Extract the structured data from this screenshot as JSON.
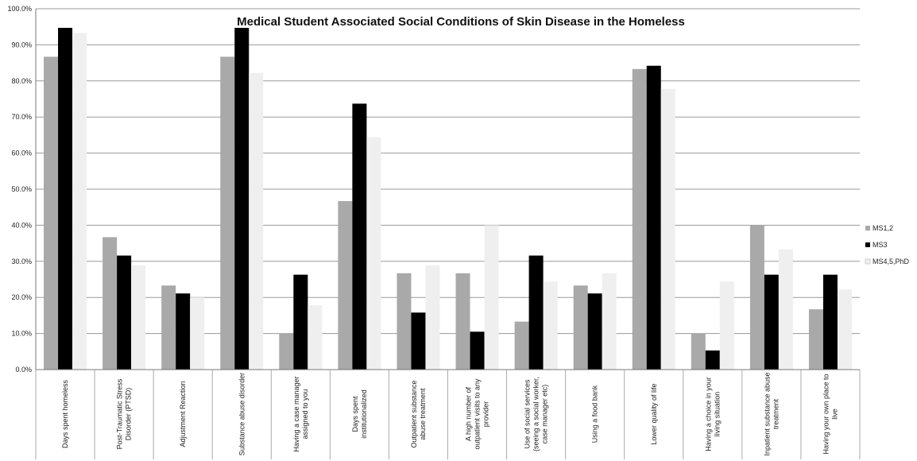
{
  "chart_data": {
    "type": "bar",
    "title": "Medical Student Associated Social Conditions of Skin Disease in the Homeless",
    "xlabel": "",
    "ylabel": "",
    "ylim": [
      0,
      100
    ],
    "yticks": [
      "0.0%",
      "10.0%",
      "20.0%",
      "30.0%",
      "40.0%",
      "50.0%",
      "60.0%",
      "70.0%",
      "80.0%",
      "90.0%",
      "100.0%"
    ],
    "grid": true,
    "legend_position": "right",
    "categories": [
      [
        "Days spent homeless"
      ],
      [
        "Post-Traumatic Stress",
        "Disorder (PTSD)"
      ],
      [
        "Adjustment Reaction"
      ],
      [
        "Substance abuse disorder"
      ],
      [
        "Having a case manager",
        "assigned to you"
      ],
      [
        "Days spent",
        "institutionalized"
      ],
      [
        "Outpatient substance",
        "abuse treatment"
      ],
      [
        "A high number of",
        "outpatient visits to any",
        "provider"
      ],
      [
        "Use of social services",
        "(seeing a social worker,",
        "case manager etc)"
      ],
      [
        "Using a food bank"
      ],
      [
        "Lower quality of life"
      ],
      [
        "Having a choice in your",
        "living situation"
      ],
      [
        "Inpatient substance abuse",
        "treatment"
      ],
      [
        "Having your own place to",
        "live"
      ]
    ],
    "series": [
      {
        "name": "MS1,2",
        "color": "#a9a9a9",
        "values": [
          86.7,
          36.7,
          23.3,
          86.7,
          10.0,
          46.7,
          26.7,
          26.7,
          13.3,
          23.3,
          83.3,
          10.0,
          40.0,
          16.7
        ]
      },
      {
        "name": "MS3",
        "color": "#000000",
        "values": [
          94.7,
          31.6,
          21.1,
          94.7,
          26.3,
          73.7,
          15.8,
          10.5,
          31.6,
          21.1,
          84.2,
          5.3,
          26.3,
          26.3
        ]
      },
      {
        "name": "MS4,5,PhD",
        "color": "#efefef",
        "values": [
          93.3,
          28.9,
          20.0,
          82.2,
          17.8,
          64.4,
          28.9,
          40.0,
          24.4,
          26.7,
          77.8,
          24.4,
          33.3,
          22.2
        ]
      }
    ]
  }
}
